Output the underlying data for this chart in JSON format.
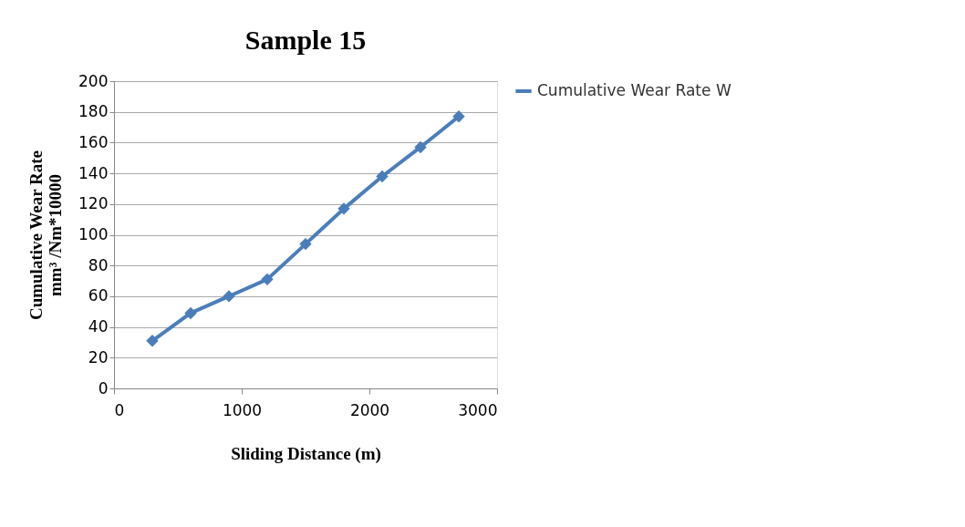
{
  "chart_data": {
    "type": "line",
    "title": "Sample 15",
    "xlabel": "Sliding Distance (m)",
    "ylabel": "Cumulative Wear Rate\nmm³ /Nm*10000",
    "x": [
      300,
      600,
      900,
      1200,
      1500,
      1800,
      2100,
      2400,
      2700
    ],
    "series": [
      {
        "name": "Cumulative Wear Rate W",
        "color": "#4a7ebb",
        "values": [
          31,
          49,
          60,
          71,
          94,
          117,
          138,
          157,
          177
        ]
      }
    ],
    "xlim": [
      0,
      3000
    ],
    "xticks": [
      0,
      1000,
      2000,
      3000
    ],
    "ylim": [
      0,
      200
    ],
    "yticks": [
      0,
      20,
      40,
      60,
      80,
      100,
      120,
      140,
      160,
      180,
      200
    ],
    "grid": "y",
    "legend": "right",
    "marker": "diamond",
    "line_style": "solid"
  }
}
